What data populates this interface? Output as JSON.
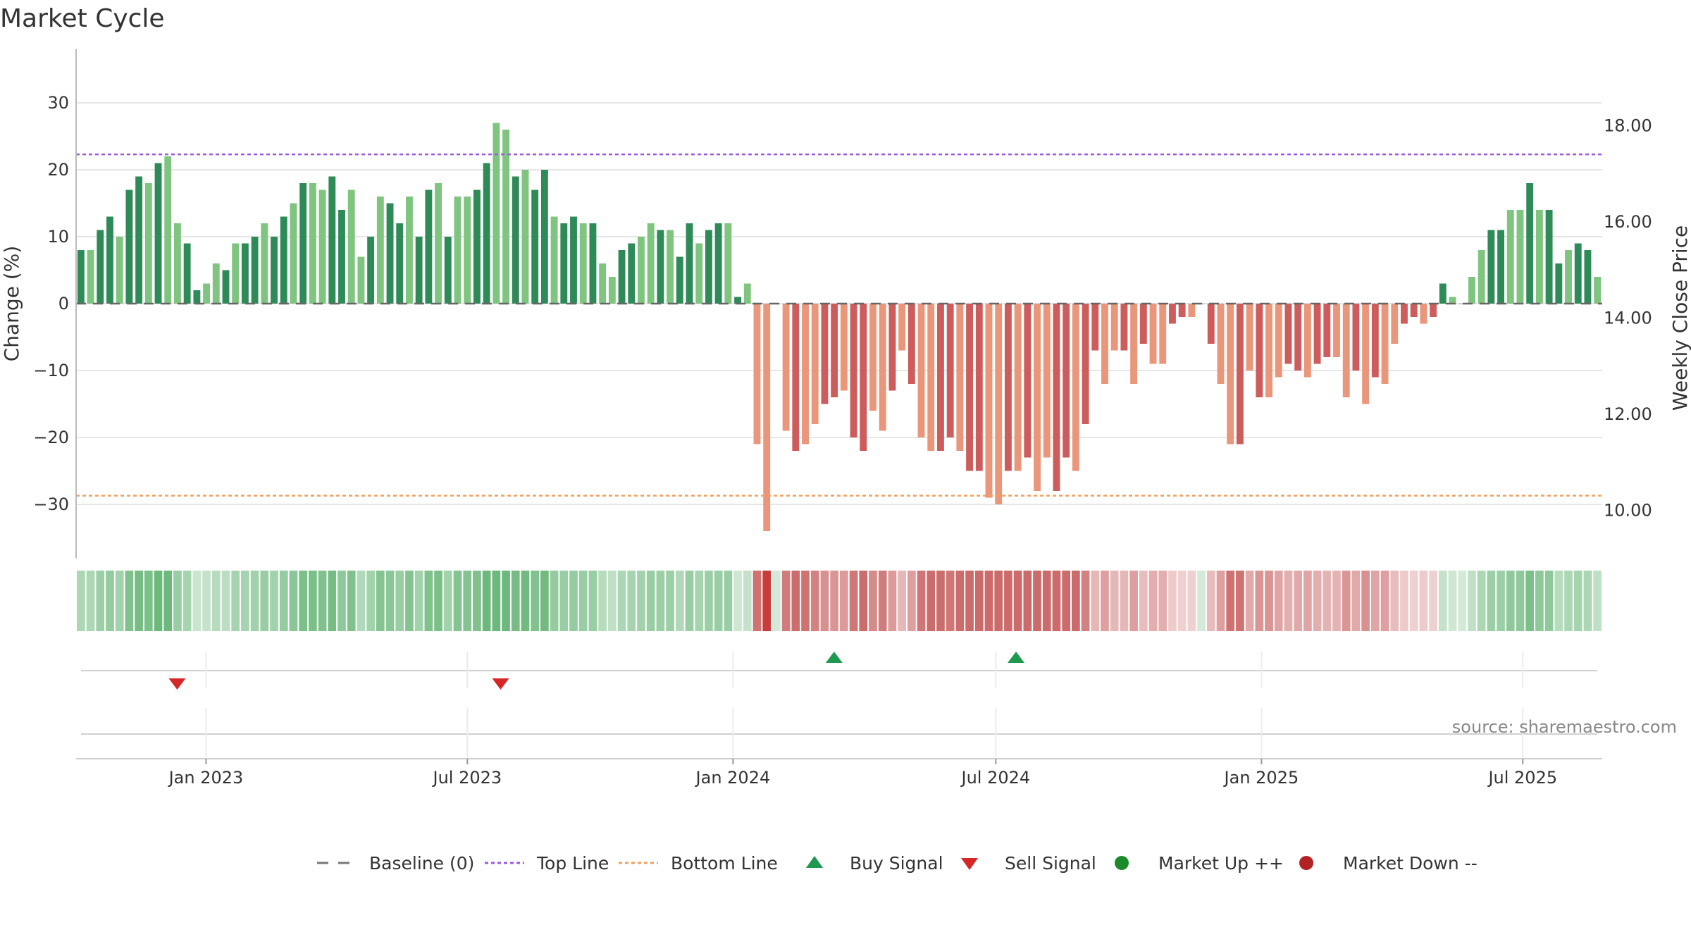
{
  "chart_data": {
    "type": "bar",
    "title": "Market Cycle",
    "ylabel_left": "Change (%)",
    "ylabel_right": "Weekly Close Price",
    "ylim_left": [
      -37,
      37
    ],
    "yticks_left": [
      30,
      20,
      10,
      0,
      -10,
      -20,
      -30
    ],
    "yticks_left_labels": [
      "30",
      "20",
      "10",
      "0",
      "−10",
      "−20",
      "−30"
    ],
    "ylim_right": [
      9.0,
      19.6
    ],
    "yticks_right": [
      18,
      16,
      14,
      12,
      10
    ],
    "yticks_right_labels": [
      "18.00",
      "16.00",
      "14.00",
      "12.00",
      "10.00"
    ],
    "top_line": 22.3,
    "bottom_line": -28.7,
    "x_range": [
      "2022-10-03",
      "2025-08-25"
    ],
    "x_ticks": [
      {
        "label": "Jan 2023",
        "date": "2023-01-01"
      },
      {
        "label": "Jul 2023",
        "date": "2023-07-01"
      },
      {
        "label": "Jan 2024",
        "date": "2024-01-01"
      },
      {
        "label": "Jul 2024",
        "date": "2024-07-01"
      },
      {
        "label": "Jan 2025",
        "date": "2025-01-01"
      },
      {
        "label": "Jul 2025",
        "date": "2025-07-01"
      }
    ],
    "start_week": "2022-10-03",
    "weekly_change": [
      8,
      8,
      11,
      13,
      10,
      17,
      19,
      18,
      21,
      22,
      12,
      9,
      2,
      3,
      6,
      5,
      9,
      9,
      10,
      12,
      10,
      13,
      15,
      18,
      18,
      17,
      19,
      14,
      17,
      7,
      10,
      16,
      15,
      12,
      16,
      10,
      17,
      18,
      10,
      16,
      16,
      17,
      21,
      27,
      26,
      19,
      20,
      17,
      20,
      13,
      12,
      13,
      12,
      12,
      6,
      4,
      8,
      9,
      10,
      12,
      11,
      11,
      7,
      12,
      9,
      11,
      12,
      12,
      1,
      3,
      -21,
      -34,
      0,
      -19,
      -22,
      -21,
      -18,
      -15,
      -14,
      -13,
      -20,
      -22,
      -16,
      -19,
      -13,
      -7,
      -12,
      -20,
      -22,
      -22,
      -20,
      -22,
      -25,
      -25,
      -29,
      -30,
      -25,
      -25,
      -23,
      -28,
      -23,
      -28,
      -23,
      -25,
      -18,
      -7,
      -12,
      -7,
      -7,
      -12,
      -6,
      -9,
      -9,
      -3,
      -2,
      -2,
      0,
      -6,
      -12,
      -21,
      -21,
      -10,
      -14,
      -14,
      -11,
      -9,
      -10,
      -11,
      -9,
      -8,
      -8,
      -14,
      -10,
      -15,
      -11,
      -12,
      -6,
      -3,
      -2,
      -3,
      -2,
      3,
      1,
      0,
      4,
      8,
      11,
      11,
      14,
      14,
      18,
      14,
      14,
      6,
      8,
      9,
      8,
      4
    ],
    "buy_signals": [
      "2024-03-11",
      "2024-07-15"
    ],
    "sell_signals": [
      "2022-12-12",
      "2023-07-24"
    ],
    "legend": [
      {
        "label": "Baseline (0)",
        "kind": "dash",
        "color": "#777777"
      },
      {
        "label": "Top Line",
        "kind": "dot",
        "color": "#9a5ae0"
      },
      {
        "label": "Bottom Line",
        "kind": "dot",
        "color": "#f0a060"
      },
      {
        "label": "Buy Signal",
        "kind": "tri-up",
        "color": "#1e9a50"
      },
      {
        "label": "Sell Signal",
        "kind": "tri-down",
        "color": "#d62728"
      },
      {
        "label": "Market Up ++",
        "kind": "circle",
        "color": "#1a8a2a"
      },
      {
        "label": "Market Down --",
        "kind": "circle",
        "color": "#b22222"
      }
    ],
    "colors": {
      "up_strong": "#2e8b57",
      "up_light": "#7fc47f",
      "down_strong": "#cd5c5c",
      "down_light": "#e9967a",
      "top_line": "#9a5ae0",
      "bottom_line": "#f0a060",
      "grid": "#e6e6e6"
    },
    "source": "source: sharemaestro.com"
  }
}
